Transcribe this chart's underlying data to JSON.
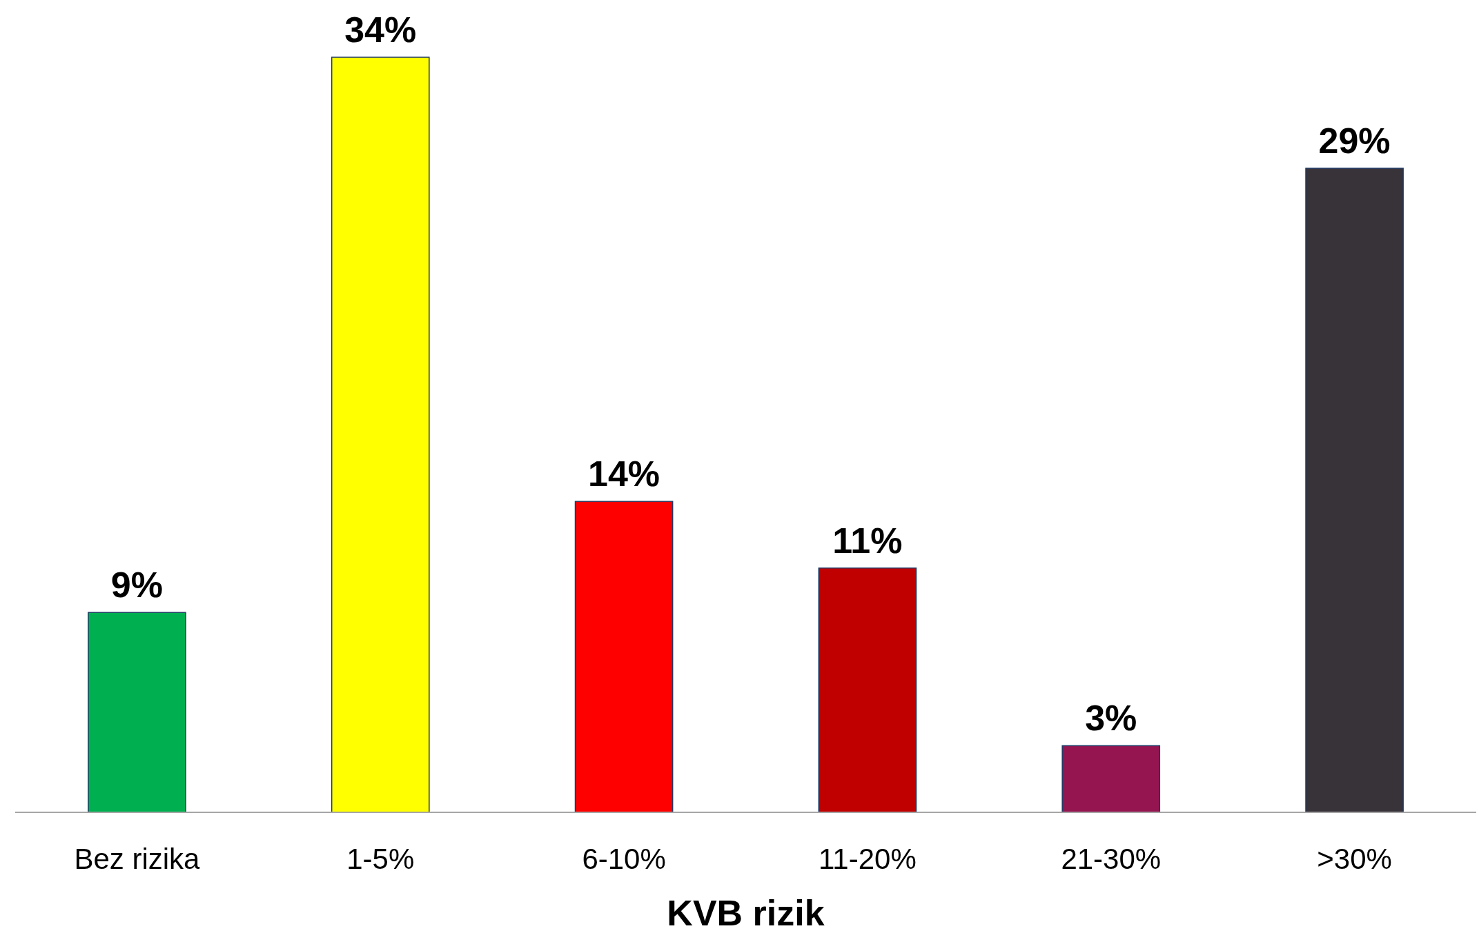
{
  "chart_data": {
    "type": "bar",
    "xlabel": "KVB rizik",
    "categories": [
      "Bez rizika",
      "1-5%",
      "6-10%",
      "11-20%",
      "21-30%",
      ">30%"
    ],
    "values": [
      9,
      34,
      14,
      11,
      3,
      29
    ],
    "colors": [
      "#00b050",
      "#ffff00",
      "#ff0000",
      "#c00000",
      "#951550",
      "#383339"
    ],
    "value_labels": [
      "9%",
      "34%",
      "14%",
      "11%",
      "3%",
      "29%"
    ]
  }
}
